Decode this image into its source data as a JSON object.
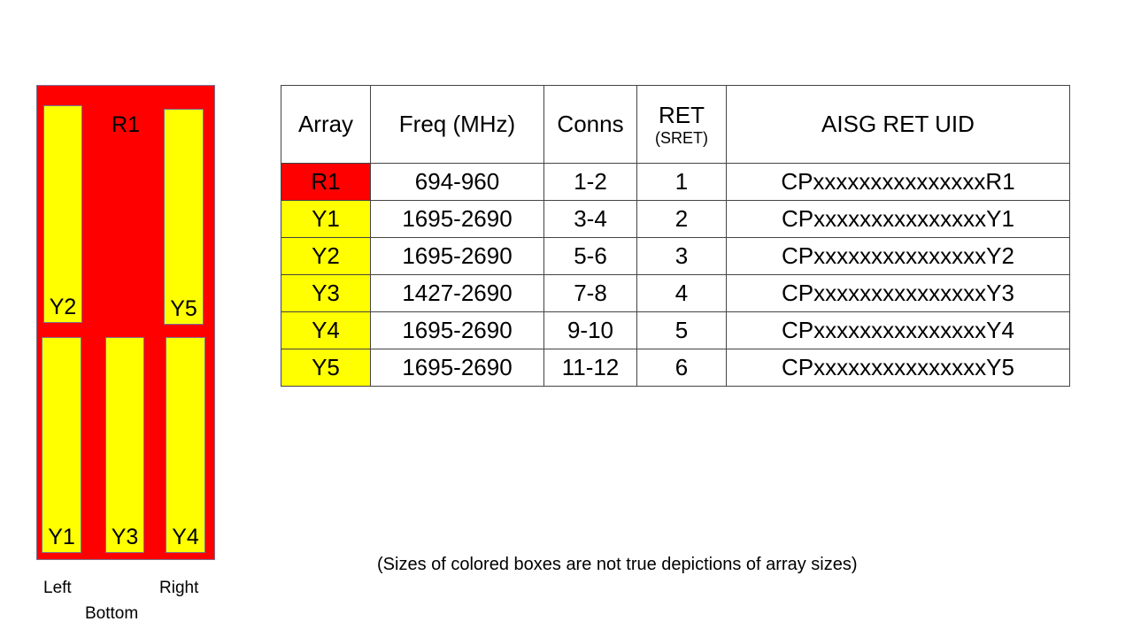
{
  "diagram": {
    "main_label": "R1",
    "boxes": [
      "Y2",
      "Y5",
      "Y1",
      "Y3",
      "Y4"
    ],
    "side_labels": {
      "left": "Left",
      "bottom": "Bottom",
      "right": "Right"
    },
    "colors": {
      "red": "#ff0000",
      "yellow": "#ffff00"
    }
  },
  "table": {
    "headers": [
      "Array",
      "Freq (MHz)",
      "Conns",
      "RET",
      "AISG RET UID"
    ],
    "ret_sub": "(SRET)",
    "rows": [
      {
        "array": "R1",
        "color": "#ff0000",
        "freq": "694-960",
        "conns": "1-2",
        "ret": "1",
        "uid": "CPxxxxxxxxxxxxxxxR1"
      },
      {
        "array": "Y1",
        "color": "#ffff00",
        "freq": "1695-2690",
        "conns": "3-4",
        "ret": "2",
        "uid": "CPxxxxxxxxxxxxxxxY1"
      },
      {
        "array": "Y2",
        "color": "#ffff00",
        "freq": "1695-2690",
        "conns": "5-6",
        "ret": "3",
        "uid": "CPxxxxxxxxxxxxxxxY2"
      },
      {
        "array": "Y3",
        "color": "#ffff00",
        "freq": "1427-2690",
        "conns": "7-8",
        "ret": "4",
        "uid": "CPxxxxxxxxxxxxxxxY3"
      },
      {
        "array": "Y4",
        "color": "#ffff00",
        "freq": "1695-2690",
        "conns": "9-10",
        "ret": "5",
        "uid": "CPxxxxxxxxxxxxxxxY4"
      },
      {
        "array": "Y5",
        "color": "#ffff00",
        "freq": "1695-2690",
        "conns": "11-12",
        "ret": "6",
        "uid": "CPxxxxxxxxxxxxxxxY5"
      }
    ]
  },
  "note": "(Sizes of colored boxes are not true depictions of array sizes)"
}
